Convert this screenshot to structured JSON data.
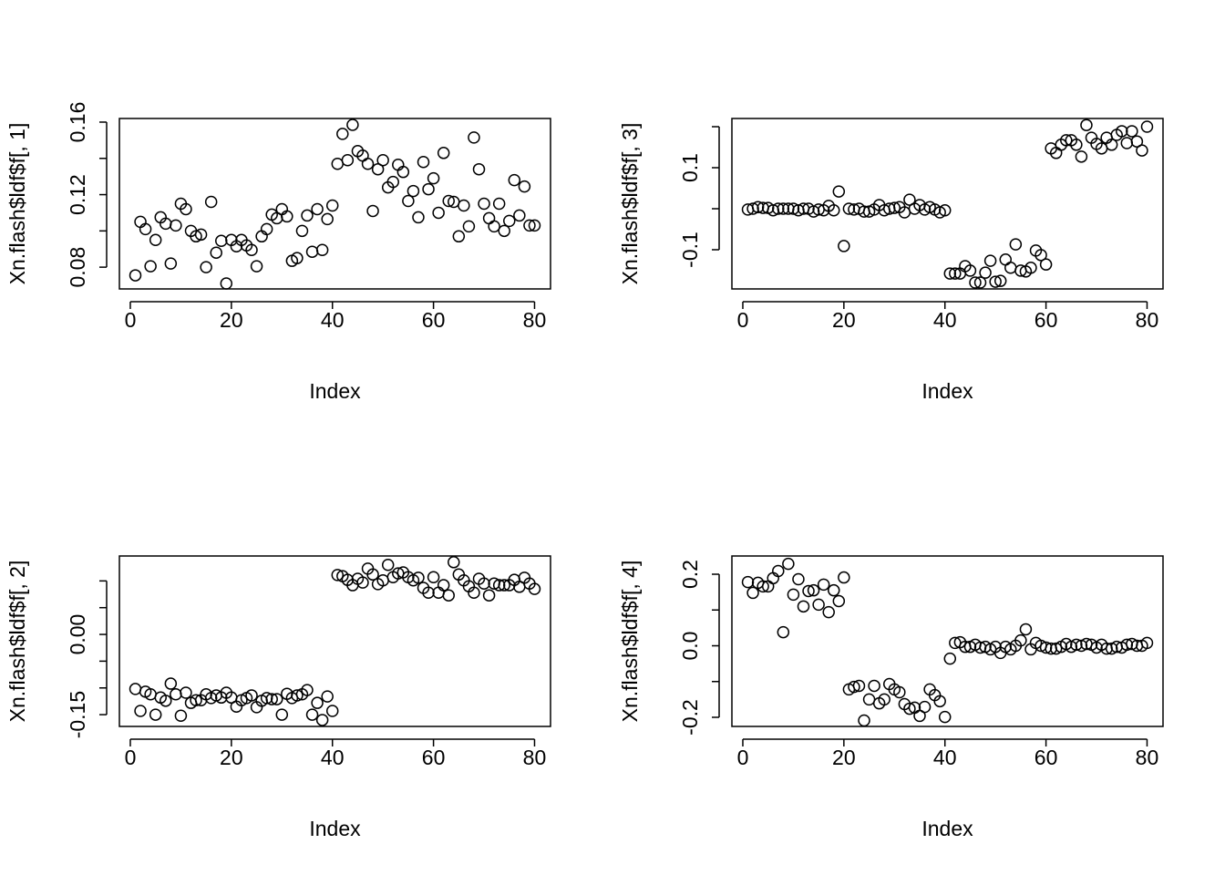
{
  "chart_data": [
    {
      "type": "scatter",
      "xlabel": "Index",
      "ylabel": "Xn.flash$ldf$f[, 1]",
      "x": [
        1,
        2,
        3,
        4,
        5,
        6,
        7,
        8,
        9,
        10,
        11,
        12,
        13,
        14,
        15,
        16,
        17,
        18,
        19,
        20,
        21,
        22,
        23,
        24,
        25,
        26,
        27,
        28,
        29,
        30,
        31,
        32,
        33,
        34,
        35,
        36,
        37,
        38,
        39,
        40,
        41,
        42,
        43,
        44,
        45,
        46,
        47,
        48,
        49,
        50,
        51,
        52,
        53,
        54,
        55,
        56,
        57,
        58,
        59,
        60,
        61,
        62,
        63,
        64,
        65,
        66,
        67,
        68,
        69,
        70,
        71,
        72,
        73,
        74,
        75,
        76,
        77,
        78,
        79,
        80
      ],
      "values": [
        0.0755,
        0.105,
        0.101,
        0.0805,
        0.095,
        0.1075,
        0.104,
        0.082,
        0.103,
        0.115,
        0.112,
        0.1,
        0.097,
        0.098,
        0.08,
        0.116,
        0.088,
        0.0945,
        0.071,
        0.095,
        0.0915,
        0.095,
        0.092,
        0.0895,
        0.0805,
        0.097,
        0.101,
        0.109,
        0.107,
        0.112,
        0.108,
        0.0835,
        0.085,
        0.1,
        0.1085,
        0.0885,
        0.112,
        0.0895,
        0.1065,
        0.114,
        0.137,
        0.1535,
        0.139,
        0.1585,
        0.144,
        0.1415,
        0.137,
        0.111,
        0.134,
        0.139,
        0.124,
        0.127,
        0.1365,
        0.1325,
        0.1165,
        0.122,
        0.1075,
        0.138,
        0.123,
        0.129,
        0.11,
        0.143,
        0.1165,
        0.116,
        0.097,
        0.114,
        0.1025,
        0.1515,
        0.134,
        0.115,
        0.107,
        0.1025,
        0.115,
        0.1,
        0.1055,
        0.128,
        0.1085,
        0.1245,
        0.103,
        0.103
      ],
      "xlim": [
        -2.16,
        83.16
      ],
      "xticks": [
        0,
        20,
        40,
        60,
        80
      ],
      "ylim": [
        0.068,
        0.162
      ],
      "yticks": [
        0.08,
        0.12,
        0.16
      ],
      "yticks_unlabeled": [
        0.1,
        0.14
      ]
    },
    {
      "type": "scatter",
      "xlabel": "Index",
      "ylabel": "Xn.flash$ldf$f[, 3]",
      "x": [
        1,
        2,
        3,
        4,
        5,
        6,
        7,
        8,
        9,
        10,
        11,
        12,
        13,
        14,
        15,
        16,
        17,
        18,
        19,
        20,
        21,
        22,
        23,
        24,
        25,
        26,
        27,
        28,
        29,
        30,
        31,
        32,
        33,
        34,
        35,
        36,
        37,
        38,
        39,
        40,
        41,
        42,
        43,
        44,
        45,
        46,
        47,
        48,
        49,
        50,
        51,
        52,
        53,
        54,
        55,
        56,
        57,
        58,
        59,
        60,
        61,
        62,
        63,
        64,
        65,
        66,
        67,
        68,
        69,
        70,
        71,
        72,
        73,
        74,
        75,
        76,
        77,
        78,
        79,
        80
      ],
      "values": [
        -0.002,
        0,
        0.004,
        0.002,
        0.002,
        -0.004,
        0,
        0,
        0,
        0,
        -0.004,
        0,
        0,
        -0.007,
        -0.002,
        -0.004,
        0.007,
        -0.004,
        0.042,
        -0.091,
        0,
        -0.002,
        0,
        -0.007,
        -0.007,
        -0.002,
        0.009,
        -0.004,
        0,
        0.002,
        0.004,
        -0.009,
        0.022,
        0,
        0.009,
        -0.002,
        0.004,
        -0.002,
        -0.009,
        -0.004,
        -0.158,
        -0.158,
        -0.158,
        -0.14,
        -0.151,
        -0.18,
        -0.18,
        -0.156,
        -0.127,
        -0.178,
        -0.176,
        -0.124,
        -0.144,
        -0.087,
        -0.151,
        -0.153,
        -0.144,
        -0.102,
        -0.113,
        -0.136,
        0.147,
        0.136,
        0.156,
        0.167,
        0.167,
        0.156,
        0.127,
        0.204,
        0.173,
        0.158,
        0.147,
        0.173,
        0.156,
        0.18,
        0.189,
        0.16,
        0.189,
        0.164,
        0.142,
        0.2
      ],
      "xlim": [
        -2.16,
        83.16
      ],
      "xticks": [
        0,
        20,
        40,
        60,
        80
      ],
      "ylim": [
        -0.1956,
        0.22
      ],
      "yticks": [
        -0.1,
        0.1
      ],
      "yticks_unlabeled": [
        0,
        0.2
      ]
    },
    {
      "type": "scatter",
      "xlabel": "Index",
      "ylabel": "Xn.flash$ldf$f[, 2]",
      "x": [
        1,
        2,
        3,
        4,
        5,
        6,
        7,
        8,
        9,
        10,
        11,
        12,
        13,
        14,
        15,
        16,
        17,
        18,
        19,
        20,
        21,
        22,
        23,
        24,
        25,
        26,
        27,
        28,
        29,
        30,
        31,
        32,
        33,
        34,
        35,
        36,
        37,
        38,
        39,
        40,
        41,
        42,
        43,
        44,
        45,
        46,
        47,
        48,
        49,
        50,
        51,
        52,
        53,
        54,
        55,
        56,
        57,
        58,
        59,
        60,
        61,
        62,
        63,
        64,
        65,
        66,
        67,
        68,
        69,
        70,
        71,
        72,
        73,
        74,
        75,
        76,
        77,
        78,
        79,
        80
      ],
      "values": [
        -0.102,
        -0.143,
        -0.107,
        -0.112,
        -0.15,
        -0.118,
        -0.124,
        -0.092,
        -0.112,
        -0.152,
        -0.109,
        -0.128,
        -0.123,
        -0.123,
        -0.112,
        -0.119,
        -0.114,
        -0.118,
        -0.109,
        -0.118,
        -0.135,
        -0.123,
        -0.119,
        -0.114,
        -0.136,
        -0.124,
        -0.119,
        -0.121,
        -0.121,
        -0.15,
        -0.111,
        -0.119,
        -0.114,
        -0.112,
        -0.104,
        -0.15,
        -0.128,
        -0.16,
        -0.116,
        -0.143,
        0.111,
        0.109,
        0.102,
        0.092,
        0.104,
        0.097,
        0.123,
        0.112,
        0.094,
        0.101,
        0.13,
        0.107,
        0.114,
        0.116,
        0.107,
        0.101,
        0.106,
        0.087,
        0.078,
        0.107,
        0.078,
        0.092,
        0.073,
        0.135,
        0.112,
        0.101,
        0.09,
        0.078,
        0.104,
        0.095,
        0.073,
        0.095,
        0.092,
        0.092,
        0.092,
        0.102,
        0.089,
        0.106,
        0.095,
        0.085
      ],
      "xlim": [
        -2.16,
        83.16
      ],
      "xticks": [
        0,
        20,
        40,
        60,
        80
      ],
      "ylim": [
        -0.172,
        0.1466
      ],
      "yticks": [
        {
          "value": 0,
          "label": "0.00"
        },
        -0.15
      ],
      "yticks_unlabeled": [
        0.1,
        0.05,
        -0.05,
        -0.1
      ]
    },
    {
      "type": "scatter",
      "xlabel": "Index",
      "ylabel": "Xn.flash$ldf$f[, 4]",
      "x": [
        1,
        2,
        3,
        4,
        5,
        6,
        7,
        8,
        9,
        10,
        11,
        12,
        13,
        14,
        15,
        16,
        17,
        18,
        19,
        20,
        21,
        22,
        23,
        24,
        25,
        26,
        27,
        28,
        29,
        30,
        31,
        32,
        33,
        34,
        35,
        36,
        37,
        38,
        39,
        40,
        41,
        42,
        43,
        44,
        45,
        46,
        47,
        48,
        49,
        50,
        51,
        52,
        53,
        54,
        55,
        56,
        57,
        58,
        59,
        60,
        61,
        62,
        63,
        64,
        65,
        66,
        67,
        68,
        69,
        70,
        71,
        72,
        73,
        74,
        75,
        76,
        77,
        78,
        79,
        80
      ],
      "values": [
        0.178,
        0.148,
        0.176,
        0.166,
        0.166,
        0.189,
        0.209,
        0.038,
        0.229,
        0.143,
        0.186,
        0.11,
        0.153,
        0.155,
        0.115,
        0.171,
        0.094,
        0.155,
        0.125,
        0.191,
        -0.122,
        -0.115,
        -0.112,
        -0.209,
        -0.15,
        -0.112,
        -0.161,
        -0.15,
        -0.107,
        -0.122,
        -0.13,
        -0.163,
        -0.176,
        -0.173,
        -0.196,
        -0.171,
        -0.122,
        -0.138,
        -0.155,
        -0.199,
        -0.036,
        0.008,
        0.01,
        -0.003,
        -0.003,
        0.003,
        -0.005,
        -0.003,
        -0.01,
        -0.003,
        -0.02,
        -0.003,
        -0.01,
        0,
        0.015,
        0.046,
        -0.01,
        0.008,
        0,
        -0.005,
        -0.008,
        -0.008,
        -0.003,
        0.005,
        -0.003,
        0.003,
        0,
        0.005,
        0.003,
        -0.005,
        0.003,
        -0.008,
        -0.008,
        -0.003,
        -0.005,
        0.003,
        0.005,
        0,
        0,
        0.008
      ],
      "xlim": [
        -2.16,
        83.16
      ],
      "xticks": [
        0,
        20,
        40,
        60,
        80
      ],
      "ylim": [
        -0.2255,
        0.251
      ],
      "yticks": [
        0.2,
        {
          "value": 0,
          "label": "0.0"
        },
        -0.2
      ],
      "yticks_unlabeled": [
        0.1,
        -0.1
      ]
    }
  ]
}
